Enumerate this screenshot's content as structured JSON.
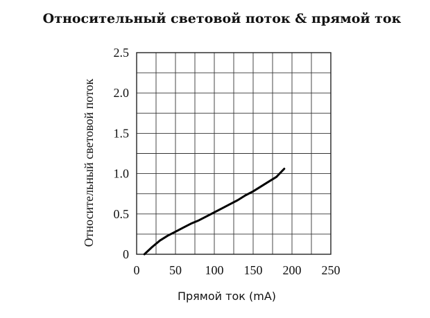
{
  "chart_data": {
    "type": "line",
    "title": "Относительный световой поток & прямой ток",
    "xlabel": "Прямой ток (mA)",
    "ylabel": "Относительный световой поток",
    "xlim": [
      0,
      250
    ],
    "ylim": [
      0,
      2.5
    ],
    "x_ticks": [
      "0",
      "50",
      "100",
      "150",
      "200",
      "250"
    ],
    "y_ticks": [
      "0",
      "0.5",
      "1.0",
      "1.5",
      "2.0",
      "2.5"
    ],
    "grid": true,
    "series": [
      {
        "x": [
          10,
          20,
          30,
          40,
          50,
          60,
          70,
          80,
          90,
          100,
          110,
          120,
          130,
          140,
          150,
          160,
          170,
          180,
          190
        ],
        "y": [
          0.0,
          0.09,
          0.17,
          0.23,
          0.28,
          0.33,
          0.38,
          0.42,
          0.47,
          0.52,
          0.57,
          0.62,
          0.67,
          0.73,
          0.78,
          0.84,
          0.9,
          0.96,
          1.06
        ]
      }
    ],
    "line_color": "#000000"
  }
}
